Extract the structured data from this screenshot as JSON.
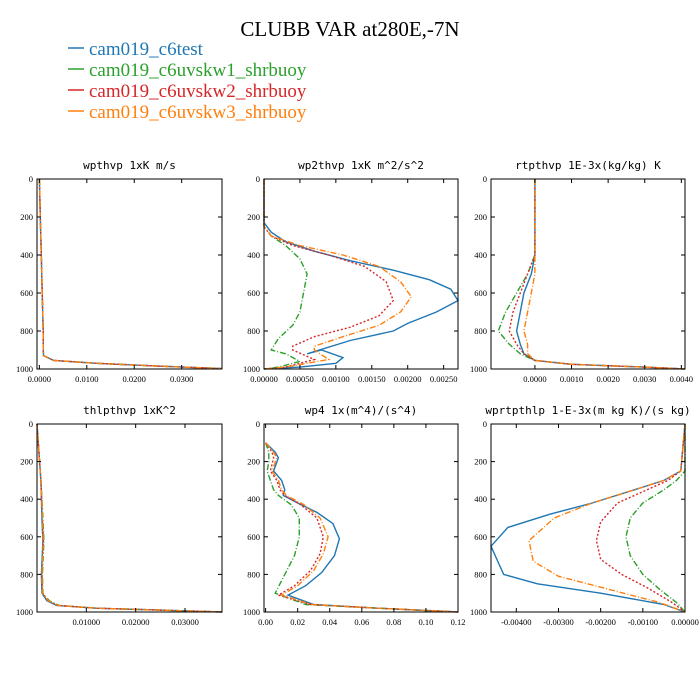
{
  "figure": {
    "title": "CLUBB VAR at280E,-7N",
    "legend": [
      {
        "name": "cam019_c6test",
        "color": "#1f77b4",
        "dash": "solid"
      },
      {
        "name": "cam019_c6uvskw1_shrbuoy",
        "color": "#2ca02c",
        "dash": "dashdot"
      },
      {
        "name": "cam019_c6uvskw2_shrbuoy",
        "color": "#d62728",
        "dash": "dot"
      },
      {
        "name": "cam019_c6uvskw3_shrbuoy",
        "color": "#ff7f0e",
        "dash": "dashdot"
      }
    ]
  },
  "chart_data": [
    {
      "type": "line",
      "title": "wpthvp   1xK m/s",
      "xlim": [
        -0.0005,
        0.0385
      ],
      "ylim": [
        1000,
        0
      ],
      "xticks": [
        0,
        0.01,
        0.02,
        0.03
      ],
      "xtick_labels": [
        "0.0000",
        "0.0100",
        "0.0200",
        "0.0300"
      ],
      "yticks": [
        0,
        200,
        400,
        600,
        800,
        1000
      ],
      "series": [
        {
          "x": [
            0.0,
            0.0002,
            0.0004,
            0.0006,
            0.0008,
            0.0008,
            0.0009,
            0.003,
            0.012,
            0.025,
            0.0385
          ],
          "y": [
            0,
            200,
            400,
            600,
            800,
            900,
            930,
            955,
            970,
            985,
            998
          ]
        },
        {
          "x": [
            0.0,
            0.0002,
            0.0004,
            0.0006,
            0.0008,
            0.0008,
            0.0009,
            0.003,
            0.012,
            0.025,
            0.0385
          ],
          "y": [
            0,
            200,
            400,
            600,
            800,
            900,
            930,
            955,
            970,
            985,
            998
          ]
        },
        {
          "x": [
            0.0,
            0.0002,
            0.0004,
            0.0006,
            0.0008,
            0.0008,
            0.0009,
            0.003,
            0.012,
            0.025,
            0.0385
          ],
          "y": [
            0,
            200,
            400,
            600,
            800,
            900,
            930,
            955,
            970,
            985,
            998
          ]
        },
        {
          "x": [
            0.0,
            0.0002,
            0.0004,
            0.0006,
            0.0008,
            0.0008,
            0.0009,
            0.003,
            0.012,
            0.025,
            0.0385
          ],
          "y": [
            0,
            200,
            400,
            600,
            800,
            900,
            930,
            955,
            970,
            985,
            998
          ]
        }
      ]
    },
    {
      "type": "line",
      "title": "wp2thvp   1xK m^2/s^2",
      "xlim": [
        0,
        0.0027
      ],
      "ylim": [
        1000,
        0
      ],
      "xticks": [
        0,
        0.0005,
        0.001,
        0.0015,
        0.002,
        0.0025
      ],
      "xtick_labels": [
        "0.00000",
        "0.00050",
        "0.00100",
        "0.00150",
        "0.00200",
        "0.00250"
      ],
      "yticks": [
        0,
        200,
        400,
        600,
        800,
        1000
      ],
      "series": [
        {
          "x": [
            0.0,
            0.0,
            0.0001,
            0.0003,
            0.0007,
            0.0012,
            0.0018,
            0.0023,
            0.0026,
            0.0027,
            0.0024,
            0.002,
            0.0018,
            0.0012,
            0.0006,
            0.0008,
            0.0011,
            0.001,
            0.0005,
            0.0
          ],
          "y": [
            0,
            230,
            280,
            330,
            380,
            430,
            480,
            530,
            580,
            640,
            700,
            760,
            800,
            850,
            920,
            900,
            940,
            970,
            990,
            1000
          ]
        },
        {
          "x": [
            0.0,
            0.0,
            0.0001,
            0.0003,
            0.0005,
            0.0006,
            0.00055,
            0.0005,
            0.0004,
            0.0002,
            0.0001,
            0.0003,
            0.0005,
            0.0002,
            0.0
          ],
          "y": [
            0,
            250,
            300,
            350,
            420,
            500,
            600,
            700,
            770,
            840,
            900,
            920,
            960,
            990,
            1000
          ]
        },
        {
          "x": [
            0.0,
            0.0,
            0.0001,
            0.0004,
            0.0009,
            0.0014,
            0.0017,
            0.0018,
            0.0016,
            0.0012,
            0.0007,
            0.0004,
            0.0004,
            0.0007,
            0.0003,
            0.0
          ],
          "y": [
            0,
            250,
            300,
            350,
            400,
            460,
            540,
            640,
            720,
            780,
            830,
            880,
            900,
            950,
            990,
            1000
          ]
        },
        {
          "x": [
            0.0,
            0.0,
            0.0001,
            0.0005,
            0.0011,
            0.0016,
            0.0019,
            0.00205,
            0.0019,
            0.0016,
            0.0011,
            0.0007,
            0.0007,
            0.0009,
            0.0003,
            0.0
          ],
          "y": [
            0,
            250,
            300,
            350,
            400,
            460,
            540,
            620,
            700,
            770,
            830,
            880,
            900,
            950,
            990,
            1000
          ]
        }
      ]
    },
    {
      "type": "line",
      "title": "rtpthvp   1E-3x(kg/kg) K",
      "xlim": [
        -0.0012,
        0.0041
      ],
      "ylim": [
        1000,
        0
      ],
      "xticks": [
        0,
        0.001,
        0.002,
        0.003,
        0.004
      ],
      "xtick_labels": [
        "0.0000",
        "0.0010",
        "0.0020",
        "0.0030",
        "0.0040"
      ],
      "yticks": [
        0,
        200,
        400,
        600,
        800,
        1000
      ],
      "series": [
        {
          "x": [
            0.0,
            0.0,
            -0.0001,
            -0.0003,
            -0.0004,
            -0.0005,
            -0.0004,
            -0.0003,
            0.0,
            0.001,
            0.003,
            0.0041
          ],
          "y": [
            0,
            400,
            500,
            600,
            700,
            800,
            870,
            920,
            955,
            975,
            990,
            1000
          ]
        },
        {
          "x": [
            0.0,
            0.0,
            -0.0002,
            -0.0005,
            -0.0008,
            -0.001,
            -0.0007,
            -0.0004,
            0.0,
            0.001,
            0.003,
            0.0041
          ],
          "y": [
            0,
            400,
            500,
            600,
            700,
            800,
            870,
            920,
            955,
            975,
            990,
            1000
          ]
        },
        {
          "x": [
            0.0,
            0.0,
            -0.0002,
            -0.0004,
            -0.0006,
            -0.0007,
            -0.0005,
            -0.0003,
            0.0,
            0.001,
            0.003,
            0.0041
          ],
          "y": [
            0,
            400,
            500,
            600,
            700,
            800,
            870,
            920,
            955,
            975,
            990,
            1000
          ]
        },
        {
          "x": [
            0.0,
            0.0,
            0.0,
            -0.0001,
            -0.0002,
            -0.0003,
            -0.0002,
            -0.0002,
            0.0,
            0.001,
            0.003,
            0.0041
          ],
          "y": [
            0,
            400,
            500,
            600,
            700,
            800,
            870,
            920,
            955,
            975,
            990,
            1000
          ]
        }
      ]
    },
    {
      "type": "line",
      "title": "thlpthvp   1xK^2",
      "xlim": [
        0,
        0.0375
      ],
      "ylim": [
        1000,
        0
      ],
      "xticks": [
        0.01,
        0.02,
        0.03
      ],
      "xtick_labels": [
        "0.01000",
        "0.02000",
        "0.03000"
      ],
      "yticks": [
        0,
        200,
        400,
        600,
        800,
        1000
      ],
      "series": [
        {
          "x": [
            0.0,
            0.0008,
            0.001,
            0.0012,
            0.0009,
            0.001,
            0.002,
            0.004,
            0.012,
            0.025,
            0.0375
          ],
          "y": [
            0,
            300,
            500,
            620,
            800,
            900,
            940,
            965,
            980,
            990,
            1000
          ]
        },
        {
          "x": [
            0.0,
            0.0008,
            0.0012,
            0.0014,
            0.0011,
            0.0012,
            0.0025,
            0.0045,
            0.012,
            0.025,
            0.0375
          ],
          "y": [
            0,
            300,
            500,
            620,
            800,
            900,
            940,
            965,
            980,
            990,
            1000
          ]
        },
        {
          "x": [
            0.0,
            0.0008,
            0.0011,
            0.0013,
            0.001,
            0.0011,
            0.0022,
            0.0042,
            0.012,
            0.025,
            0.0375
          ],
          "y": [
            0,
            300,
            500,
            620,
            800,
            900,
            940,
            965,
            980,
            990,
            1000
          ]
        },
        {
          "x": [
            0.0,
            0.0008,
            0.0011,
            0.0013,
            0.001,
            0.0011,
            0.0023,
            0.0043,
            0.012,
            0.025,
            0.0375
          ],
          "y": [
            0,
            300,
            500,
            620,
            800,
            900,
            940,
            965,
            980,
            990,
            1000
          ]
        }
      ]
    },
    {
      "type": "line",
      "title": "wp4   1x(m^4)/(s^4)",
      "xlim": [
        -0.001,
        0.12
      ],
      "ylim": [
        1000,
        0
      ],
      "xticks": [
        0,
        0.02,
        0.04,
        0.06,
        0.08,
        0.1,
        0.12
      ],
      "xtick_labels": [
        "0.00",
        "0.02",
        "0.04",
        "0.06",
        "0.08",
        "0.10",
        "0.12"
      ],
      "yticks": [
        0,
        200,
        400,
        600,
        800,
        1000
      ],
      "series": [
        {
          "x": [
            0.0,
            0.006,
            0.008,
            0.005,
            0.01,
            0.012,
            0.011,
            0.02,
            0.032,
            0.042,
            0.046,
            0.043,
            0.035,
            0.025,
            0.014,
            0.03,
            0.07,
            0.12
          ],
          "y": [
            100,
            150,
            180,
            250,
            300,
            350,
            380,
            420,
            470,
            530,
            610,
            700,
            790,
            860,
            910,
            960,
            980,
            1000
          ]
        },
        {
          "x": [
            0.0,
            0.002,
            0.002,
            0.001,
            0.003,
            0.005,
            0.008,
            0.016,
            0.021,
            0.021,
            0.018,
            0.012,
            0.006,
            0.025,
            0.07,
            0.12
          ],
          "y": [
            100,
            150,
            200,
            250,
            300,
            350,
            380,
            430,
            500,
            600,
            700,
            800,
            900,
            960,
            980,
            1000
          ]
        },
        {
          "x": [
            0.0,
            0.004,
            0.005,
            0.003,
            0.007,
            0.009,
            0.012,
            0.022,
            0.032,
            0.036,
            0.034,
            0.028,
            0.018,
            0.008,
            0.028,
            0.07,
            0.12
          ],
          "y": [
            100,
            150,
            180,
            250,
            300,
            350,
            380,
            430,
            500,
            600,
            690,
            780,
            860,
            910,
            960,
            980,
            1000
          ]
        },
        {
          "x": [
            0.0,
            0.005,
            0.007,
            0.004,
            0.008,
            0.01,
            0.013,
            0.024,
            0.034,
            0.039,
            0.036,
            0.03,
            0.02,
            0.01,
            0.029,
            0.07,
            0.12
          ],
          "y": [
            100,
            150,
            180,
            250,
            300,
            350,
            380,
            430,
            500,
            600,
            690,
            780,
            860,
            910,
            960,
            980,
            1000
          ]
        }
      ]
    },
    {
      "type": "line",
      "title": "wprtpthlp   1-E-3x(m kg K)/(s kg)",
      "xlim": [
        -0.0046,
        0.0
      ],
      "ylim": [
        1000,
        0
      ],
      "xticks": [
        -0.004,
        -0.003,
        -0.002,
        -0.001,
        0.0
      ],
      "xtick_labels": [
        "-0.00400",
        "-0.00300",
        "-0.00200",
        "-0.00100",
        "0.00000"
      ],
      "yticks": [
        0,
        200,
        400,
        600,
        800,
        1000
      ],
      "series": [
        {
          "x": [
            0.0,
            -0.0001,
            -0.0005,
            -0.0012,
            -0.0022,
            -0.0032,
            -0.0042,
            -0.0046,
            -0.0044,
            -0.0043,
            -0.0035,
            -0.002,
            -0.0005,
            0.0
          ],
          "y": [
            0,
            250,
            300,
            350,
            420,
            480,
            550,
            650,
            750,
            800,
            850,
            900,
            960,
            1000
          ]
        },
        {
          "x": [
            0.0,
            0.0,
            -0.0002,
            -0.0005,
            -0.001,
            -0.0013,
            -0.0014,
            -0.0013,
            -0.001,
            -0.0006,
            -0.0002,
            0.0
          ],
          "y": [
            0,
            250,
            300,
            350,
            420,
            500,
            600,
            700,
            800,
            880,
            950,
            1000
          ]
        },
        {
          "x": [
            0.0,
            -0.0001,
            -0.0004,
            -0.0009,
            -0.0016,
            -0.002,
            -0.0021,
            -0.002,
            -0.0015,
            -0.0009,
            -0.0003,
            0.0
          ],
          "y": [
            0,
            250,
            300,
            350,
            420,
            520,
            620,
            720,
            800,
            870,
            950,
            1000
          ]
        },
        {
          "x": [
            0.0,
            -0.0001,
            -0.0005,
            -0.0012,
            -0.0022,
            -0.0031,
            -0.0037,
            -0.0036,
            -0.003,
            -0.0018,
            -0.0006,
            0.0
          ],
          "y": [
            0,
            250,
            300,
            350,
            420,
            500,
            620,
            730,
            810,
            880,
            950,
            1000
          ]
        }
      ]
    }
  ]
}
